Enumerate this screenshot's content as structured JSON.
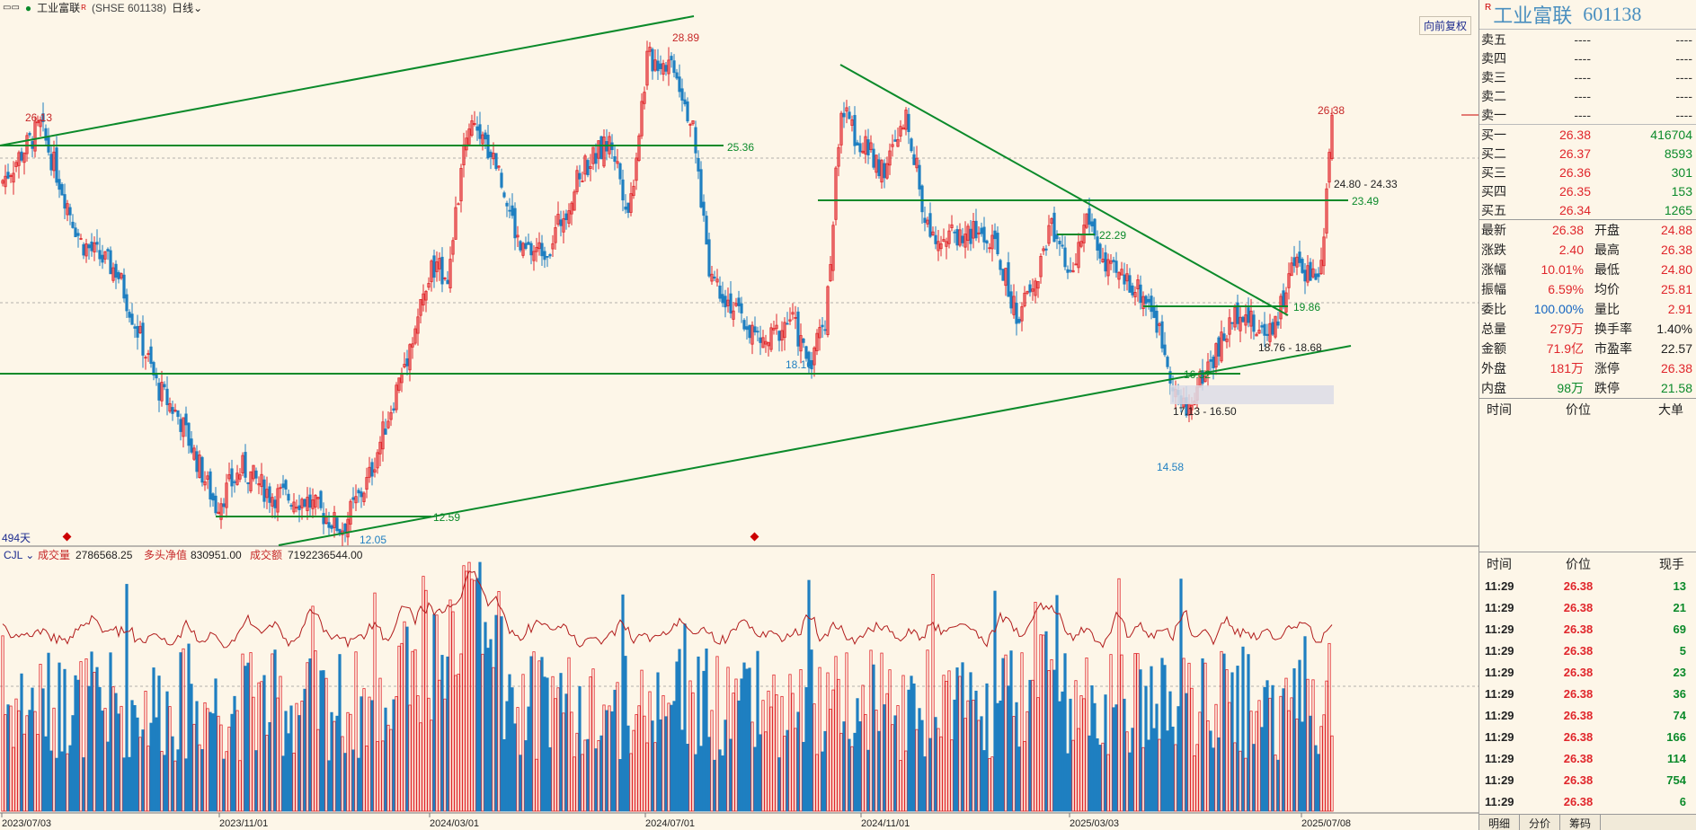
{
  "title_bar": {
    "window_icon": "window-icon",
    "stock_name": "工业富联",
    "marker": "R",
    "exchange_code": "(SHSE 601138)",
    "period": "日线",
    "restore_label": "向前复权"
  },
  "chart": {
    "candles_count_label": "494天",
    "price_labels": {
      "high_left": "26.13",
      "top_peak": "28.89",
      "right_top": "26.38",
      "level_2536": "25.36",
      "level_2349": "23.49",
      "range_2480": "24.80 - 24.33",
      "level_2229": "22.29",
      "level_1986": "19.86",
      "range_1876": "18.76 - 18.68",
      "low_1810": "18.10",
      "level_1652": "16.52",
      "range_1713": "17.13 - 16.50",
      "low_1458": "14.58",
      "level_1259": "12.59",
      "low_1205": "12.05"
    },
    "x_axis": [
      "2023/07/03",
      "2023/11/01",
      "2024/03/01",
      "2024/07/01",
      "2024/11/01",
      "2025/03/03",
      "2025/07/08"
    ]
  },
  "volume": {
    "indicator": "CJL",
    "vol_label": "成交量",
    "vol_value": "2786568.25",
    "net_label": "多头净值",
    "net_value": "830951.00",
    "amt_label": "成交额",
    "amt_value": "7192236544.00"
  },
  "side": {
    "marker": "R",
    "name": "工业富联",
    "code": "601138",
    "asks": [
      {
        "label": "卖五",
        "price": "----",
        "vol": "----"
      },
      {
        "label": "卖四",
        "price": "----",
        "vol": "----"
      },
      {
        "label": "卖三",
        "price": "----",
        "vol": "----"
      },
      {
        "label": "卖二",
        "price": "----",
        "vol": "----"
      },
      {
        "label": "卖一",
        "price": "----",
        "vol": "----"
      }
    ],
    "bids": [
      {
        "label": "买一",
        "price": "26.38",
        "vol": "416704"
      },
      {
        "label": "买二",
        "price": "26.37",
        "vol": "8593"
      },
      {
        "label": "买三",
        "price": "26.36",
        "vol": "301"
      },
      {
        "label": "买四",
        "price": "26.35",
        "vol": "153"
      },
      {
        "label": "买五",
        "price": "26.34",
        "vol": "1265"
      }
    ],
    "stats": [
      {
        "k": "最新",
        "v": "26.38",
        "vc": "red",
        "k2": "开盘",
        "v2": "24.88",
        "v2c": "red"
      },
      {
        "k": "涨跌",
        "v": "2.40",
        "vc": "red",
        "k2": "最高",
        "v2": "26.38",
        "v2c": "red"
      },
      {
        "k": "涨幅",
        "v": "10.01%",
        "vc": "red",
        "k2": "最低",
        "v2": "24.80",
        "v2c": "red"
      },
      {
        "k": "振幅",
        "v": "6.59%",
        "vc": "red",
        "k2": "均价",
        "v2": "25.81",
        "v2c": "red"
      },
      {
        "k": "委比",
        "v": "100.00%",
        "vc": "blue",
        "k2": "量比",
        "v2": "2.91",
        "v2c": "red"
      },
      {
        "k": "总量",
        "v": "279万",
        "vc": "red",
        "k2": "换手率",
        "v2": "1.40%",
        "v2c": "dark"
      },
      {
        "k": "金额",
        "v": "71.9亿",
        "vc": "red",
        "k2": "市盈率",
        "v2": "22.57",
        "v2c": "dark"
      },
      {
        "k": "外盘",
        "v": "181万",
        "vc": "red",
        "k2": "涨停",
        "v2": "26.38",
        "v2c": "red"
      },
      {
        "k": "内盘",
        "v": "98万",
        "vc": "green",
        "k2": "跌停",
        "v2": "21.58",
        "v2c": "green"
      }
    ],
    "big_order_header": [
      "时间",
      "价位",
      "大单"
    ],
    "ticks_header": [
      "时间",
      "价位",
      "现手"
    ],
    "ticks": [
      {
        "t": "11:29",
        "p": "26.38",
        "v": "13"
      },
      {
        "t": "11:29",
        "p": "26.38",
        "v": "21"
      },
      {
        "t": "11:29",
        "p": "26.38",
        "v": "69"
      },
      {
        "t": "11:29",
        "p": "26.38",
        "v": "5"
      },
      {
        "t": "11:29",
        "p": "26.38",
        "v": "23"
      },
      {
        "t": "11:29",
        "p": "26.38",
        "v": "36"
      },
      {
        "t": "11:29",
        "p": "26.38",
        "v": "74"
      },
      {
        "t": "11:29",
        "p": "26.38",
        "v": "166"
      },
      {
        "t": "11:29",
        "p": "26.38",
        "v": "114"
      },
      {
        "t": "11:29",
        "p": "26.38",
        "v": "754"
      },
      {
        "t": "11:29",
        "p": "26.38",
        "v": "6"
      }
    ],
    "tabs": [
      "明细",
      "分价",
      "筹码"
    ]
  },
  "colors": {
    "up": "#e0262b",
    "down": "#1f7fc1",
    "trend": "#0b8a2a",
    "bg": "#fdf6e8"
  }
}
